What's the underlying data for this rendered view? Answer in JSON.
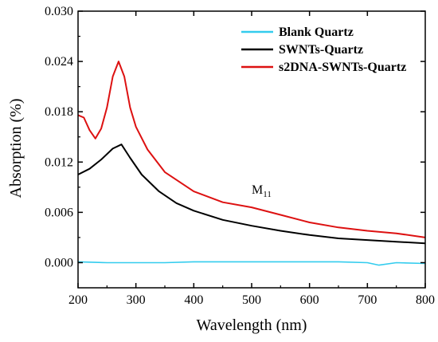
{
  "chart_data": {
    "type": "line",
    "xlabel": "Wavelength (nm)",
    "ylabel": "Absorption (%)",
    "xlim": [
      200,
      800
    ],
    "ylim": [
      -0.003,
      0.03
    ],
    "xticks": [
      200,
      300,
      400,
      500,
      600,
      700,
      800
    ],
    "yticks": [
      0.0,
      0.006,
      0.012,
      0.018,
      0.024,
      0.03
    ],
    "xtick_labels": [
      "200",
      "300",
      "400",
      "500",
      "600",
      "700",
      "800"
    ],
    "ytick_labels": [
      "0.000",
      "0.006",
      "0.012",
      "0.018",
      "0.024",
      "0.030"
    ],
    "grid": false,
    "legend_position": "top-right",
    "annotation": {
      "text": "M",
      "subscript": "11",
      "x": 500,
      "y": 0.0075
    },
    "series": [
      {
        "name": "Blank Quartz",
        "color": "#33ccee",
        "x": [
          200,
          250,
          300,
          350,
          400,
          450,
          500,
          550,
          600,
          650,
          700,
          720,
          750,
          800
        ],
        "y": [
          0.0001,
          0.0,
          0.0,
          0.0,
          0.0001,
          0.0001,
          0.0001,
          0.0001,
          0.0001,
          0.0001,
          0.0,
          -0.0003,
          0.0,
          -0.0001
        ]
      },
      {
        "name": "SWNTs-Quartz",
        "color": "#000000",
        "x": [
          200,
          220,
          240,
          260,
          275,
          290,
          310,
          340,
          370,
          400,
          450,
          500,
          550,
          600,
          650,
          700,
          750,
          800
        ],
        "y": [
          0.0105,
          0.0112,
          0.0123,
          0.0136,
          0.0141,
          0.0125,
          0.0105,
          0.0085,
          0.0071,
          0.0062,
          0.0051,
          0.0044,
          0.0038,
          0.0033,
          0.0029,
          0.0027,
          0.0025,
          0.0023
        ]
      },
      {
        "name": "s2DNA-SWNTs-Quartz",
        "color": "#dd1111",
        "x": [
          200,
          210,
          220,
          230,
          240,
          250,
          260,
          270,
          280,
          290,
          300,
          320,
          350,
          400,
          450,
          500,
          550,
          600,
          650,
          700,
          750,
          800
        ],
        "y": [
          0.0176,
          0.0173,
          0.0158,
          0.0148,
          0.016,
          0.0185,
          0.0222,
          0.024,
          0.0222,
          0.0185,
          0.0162,
          0.0135,
          0.0108,
          0.0085,
          0.0072,
          0.0066,
          0.0057,
          0.0048,
          0.0042,
          0.0038,
          0.0035,
          0.003
        ]
      }
    ]
  }
}
